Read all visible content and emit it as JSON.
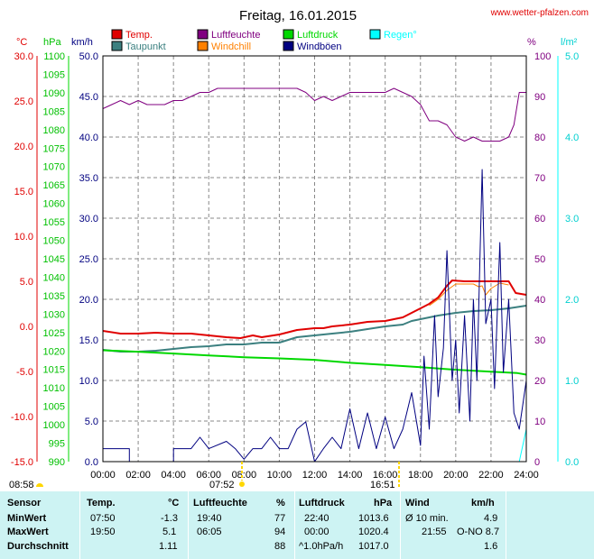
{
  "header": {
    "title": "Freitag, 16.01.2015",
    "site": "www.wetter-pfalzen.com"
  },
  "legend": [
    {
      "label": "Temp.",
      "color": "#e00000"
    },
    {
      "label": "Luftfeuchte",
      "color": "#800080"
    },
    {
      "label": "Luftdruck",
      "color": "#00d800"
    },
    {
      "label": "Regen°",
      "color": "#00ffff"
    },
    {
      "label": "Taupunkt",
      "color": "#3c8080"
    },
    {
      "label": "Windchill",
      "color": "#ff8000"
    },
    {
      "label": "Windböen",
      "color": "#000080"
    }
  ],
  "axis_units": {
    "temp": "°C",
    "pressure": "hPa",
    "wind": "km/h",
    "humidity": "%",
    "rain": "l/m²"
  },
  "sun": {
    "sunrise_label": "08:58",
    "sunset_mark": "07:52",
    "sunset_label": "16:51"
  },
  "chart_data": {
    "type": "line",
    "title": "Freitag, 16.01.2015",
    "x_ticks": [
      "00:00",
      "02:00",
      "04:00",
      "06:00",
      "08:00",
      "10:00",
      "12:00",
      "14:00",
      "16:00",
      "18:00",
      "20:00",
      "22:00",
      "24:00"
    ],
    "axes": {
      "temp": {
        "unit": "°C",
        "range": [
          -15,
          30
        ],
        "ticks": [
          "30.0",
          "25.0",
          "20.0",
          "15.0",
          "10.0",
          "5.0",
          "0.0",
          "-5.0",
          "-10.0",
          "-15.0"
        ]
      },
      "pressure": {
        "unit": "hPa",
        "range": [
          990,
          1100
        ],
        "ticks": [
          "1100",
          "1095",
          "1090",
          "1085",
          "1080",
          "1075",
          "1070",
          "1065",
          "1060",
          "1055",
          "1050",
          "1045",
          "1040",
          "1035",
          "1030",
          "1025",
          "1020",
          "1015",
          "1010",
          "1005",
          "1000",
          "995",
          "990"
        ]
      },
      "wind": {
        "unit": "km/h",
        "range": [
          0,
          50
        ],
        "ticks": [
          "50.0",
          "45.0",
          "40.0",
          "35.0",
          "30.0",
          "25.0",
          "20.0",
          "15.0",
          "10.0",
          "5.0",
          "0.0"
        ]
      },
      "humidity": {
        "unit": "%",
        "range": [
          0,
          100
        ],
        "ticks": [
          "100",
          "90",
          "80",
          "70",
          "60",
          "50",
          "40",
          "30",
          "20",
          "10",
          "0"
        ]
      },
      "rain": {
        "unit": "l/m²",
        "range": [
          0,
          5
        ],
        "ticks": [
          "5.0",
          "4.0",
          "3.0",
          "2.0",
          "1.0",
          "0.0"
        ]
      }
    },
    "series": [
      {
        "name": "Luftfeuchte",
        "axis": "humidity",
        "color": "#800080",
        "points": [
          [
            0,
            87
          ],
          [
            0.5,
            88
          ],
          [
            1,
            89
          ],
          [
            1.5,
            88
          ],
          [
            2,
            89
          ],
          [
            2.5,
            88
          ],
          [
            3,
            88
          ],
          [
            3.5,
            88
          ],
          [
            4,
            89
          ],
          [
            4.5,
            89
          ],
          [
            5,
            90
          ],
          [
            5.5,
            91
          ],
          [
            6,
            91
          ],
          [
            6.5,
            92
          ],
          [
            7,
            92
          ],
          [
            7.5,
            92
          ],
          [
            8,
            92
          ],
          [
            9,
            92
          ],
          [
            10,
            92
          ],
          [
            11,
            92
          ],
          [
            11.5,
            91
          ],
          [
            12,
            89
          ],
          [
            12.5,
            90
          ],
          [
            13,
            89
          ],
          [
            13.5,
            90
          ],
          [
            14,
            91
          ],
          [
            14.5,
            91
          ],
          [
            15,
            91
          ],
          [
            15.5,
            91
          ],
          [
            16,
            91
          ],
          [
            16.5,
            92
          ],
          [
            17,
            91
          ],
          [
            17.5,
            90
          ],
          [
            18,
            88
          ],
          [
            18.5,
            84
          ],
          [
            19,
            84
          ],
          [
            19.5,
            83
          ],
          [
            20,
            80
          ],
          [
            20.5,
            79
          ],
          [
            21,
            80
          ],
          [
            21.5,
            79
          ],
          [
            22,
            79
          ],
          [
            22.5,
            79
          ],
          [
            23,
            80
          ],
          [
            23.3,
            83
          ],
          [
            23.6,
            91
          ],
          [
            24,
            91
          ]
        ]
      },
      {
        "name": "Temp.",
        "axis": "temp",
        "color": "#e00000",
        "points": [
          [
            0,
            -0.5
          ],
          [
            1,
            -0.8
          ],
          [
            2,
            -0.8
          ],
          [
            3,
            -0.7
          ],
          [
            4,
            -0.8
          ],
          [
            5,
            -0.8
          ],
          [
            6,
            -1.0
          ],
          [
            7,
            -1.2
          ],
          [
            7.8,
            -1.3
          ],
          [
            8.5,
            -1.0
          ],
          [
            9,
            -1.2
          ],
          [
            10,
            -0.9
          ],
          [
            11,
            -0.4
          ],
          [
            12,
            -0.2
          ],
          [
            12.5,
            -0.2
          ],
          [
            13,
            0.0
          ],
          [
            14,
            0.2
          ],
          [
            15,
            0.5
          ],
          [
            16,
            0.6
          ],
          [
            17,
            1.0
          ],
          [
            17.5,
            1.5
          ],
          [
            18,
            2.0
          ],
          [
            18.5,
            2.5
          ],
          [
            19,
            3.2
          ],
          [
            19.5,
            4.5
          ],
          [
            19.8,
            5.1
          ],
          [
            20.5,
            5.0
          ],
          [
            21,
            5.0
          ],
          [
            21.5,
            5.0
          ],
          [
            22,
            5.0
          ],
          [
            22.5,
            5.0
          ],
          [
            23,
            5.0
          ],
          [
            23.4,
            3.7
          ],
          [
            24,
            3.5
          ]
        ]
      },
      {
        "name": "Taupunkt",
        "axis": "temp",
        "color": "#3c8080",
        "points": [
          [
            0,
            -2.6
          ],
          [
            1,
            -2.8
          ],
          [
            2,
            -2.8
          ],
          [
            3,
            -2.7
          ],
          [
            4,
            -2.5
          ],
          [
            5,
            -2.3
          ],
          [
            6,
            -2.2
          ],
          [
            7,
            -2.0
          ],
          [
            8,
            -2.0
          ],
          [
            9,
            -1.8
          ],
          [
            10,
            -1.8
          ],
          [
            11,
            -1.2
          ],
          [
            12,
            -1.0
          ],
          [
            13,
            -0.8
          ],
          [
            14,
            -0.6
          ],
          [
            15,
            -0.3
          ],
          [
            16,
            0.0
          ],
          [
            17,
            0.2
          ],
          [
            17.5,
            0.6
          ],
          [
            18,
            0.8
          ],
          [
            19,
            1.2
          ],
          [
            20,
            1.5
          ],
          [
            21,
            1.7
          ],
          [
            22,
            1.8
          ],
          [
            23,
            2.0
          ],
          [
            24,
            2.3
          ]
        ]
      },
      {
        "name": "Windchill",
        "axis": "temp",
        "color": "#ff8000",
        "points": [
          [
            18.5,
            2.3
          ],
          [
            19,
            3.0
          ],
          [
            19.5,
            4.0
          ],
          [
            20,
            4.7
          ],
          [
            21,
            4.7
          ],
          [
            21.3,
            4.4
          ],
          [
            21.5,
            4.5
          ],
          [
            21.7,
            3.5
          ],
          [
            22,
            4.2
          ],
          [
            22.5,
            4.8
          ],
          [
            23,
            4.6
          ]
        ]
      },
      {
        "name": "Luftdruck",
        "axis": "pressure",
        "color": "#00d800",
        "points": [
          [
            0,
            1020.2
          ],
          [
            2,
            1019.8
          ],
          [
            4,
            1019.3
          ],
          [
            6,
            1018.8
          ],
          [
            8,
            1018.3
          ],
          [
            10,
            1018.0
          ],
          [
            12,
            1017.6
          ],
          [
            14,
            1016.8
          ],
          [
            16,
            1016.2
          ],
          [
            18,
            1015.6
          ],
          [
            20,
            1014.9
          ],
          [
            22,
            1014.4
          ],
          [
            23.5,
            1014.0
          ],
          [
            24,
            1013.6
          ]
        ]
      },
      {
        "name": "Windböen",
        "axis": "wind",
        "color": "#000080",
        "points": [
          [
            0,
            1.6
          ],
          [
            1.5,
            1.6
          ],
          [
            1.5,
            0
          ],
          [
            4,
            0
          ],
          [
            4,
            1.6
          ],
          [
            5,
            1.6
          ],
          [
            5.5,
            3.0
          ],
          [
            6,
            1.6
          ],
          [
            7,
            2.5
          ],
          [
            7.5,
            1.6
          ],
          [
            8,
            0.3
          ],
          [
            8.5,
            1.6
          ],
          [
            9,
            1.6
          ],
          [
            9.5,
            3.0
          ],
          [
            10,
            1.6
          ],
          [
            10.5,
            1.6
          ],
          [
            11,
            4.0
          ],
          [
            11.5,
            4.9
          ],
          [
            12,
            0
          ],
          [
            12.5,
            1.6
          ],
          [
            13,
            3.0
          ],
          [
            13.5,
            1.6
          ],
          [
            14,
            6.5
          ],
          [
            14.5,
            1.6
          ],
          [
            15,
            6.0
          ],
          [
            15.5,
            1.6
          ],
          [
            16,
            5.5
          ],
          [
            16.5,
            1.6
          ],
          [
            17,
            4.0
          ],
          [
            17.5,
            8.5
          ],
          [
            18,
            2.0
          ],
          [
            18.2,
            13.0
          ],
          [
            18.5,
            4.0
          ],
          [
            18.8,
            18.0
          ],
          [
            19,
            8.0
          ],
          [
            19.3,
            14.0
          ],
          [
            19.5,
            26.0
          ],
          [
            19.8,
            10.0
          ],
          [
            20,
            15.0
          ],
          [
            20.2,
            6.0
          ],
          [
            20.5,
            18.0
          ],
          [
            20.8,
            5.0
          ],
          [
            21,
            20.0
          ],
          [
            21.2,
            10.0
          ],
          [
            21.5,
            36.0
          ],
          [
            21.7,
            17.0
          ],
          [
            22,
            20.0
          ],
          [
            22.2,
            9.0
          ],
          [
            22.5,
            27.0
          ],
          [
            22.7,
            11.0
          ],
          [
            23,
            20.0
          ],
          [
            23.3,
            6.0
          ],
          [
            23.6,
            4.0
          ],
          [
            24,
            10.0
          ]
        ]
      },
      {
        "name": "Regen°",
        "axis": "rain",
        "color": "#00ffff",
        "points": [
          [
            0,
            0
          ],
          [
            23.6,
            0
          ],
          [
            24,
            0.4
          ]
        ]
      }
    ]
  },
  "table": {
    "headers": [
      "Sensor",
      "Temp.",
      "°C",
      "Luftfeuchte",
      "%",
      "Luftdruck",
      "hPa",
      "Wind",
      "km/h"
    ],
    "rows": [
      {
        "label": "MinWert",
        "temp_time": "07:50",
        "temp_val": "-1.3",
        "hum_time": "19:40",
        "hum_val": "77",
        "press_time": "22:40",
        "press_val": "1013.6",
        "wind_desc": "Ø 10 min.",
        "wind_val": "4.9"
      },
      {
        "label": "MaxWert",
        "temp_time": "19:50",
        "temp_val": "5.1",
        "hum_time": "06:05",
        "hum_val": "94",
        "press_time": "00:00",
        "press_val": "1020.4",
        "wind_desc": "21:55",
        "wind_val": "O-NO 8.7"
      },
      {
        "label": "Durchschnitt",
        "temp_time": "",
        "temp_val": "1.11",
        "hum_time": "",
        "hum_val": "88",
        "press_time": "^1.0hPa/h",
        "press_val": "1017.0",
        "wind_desc": "",
        "wind_val": "1.6"
      }
    ]
  }
}
